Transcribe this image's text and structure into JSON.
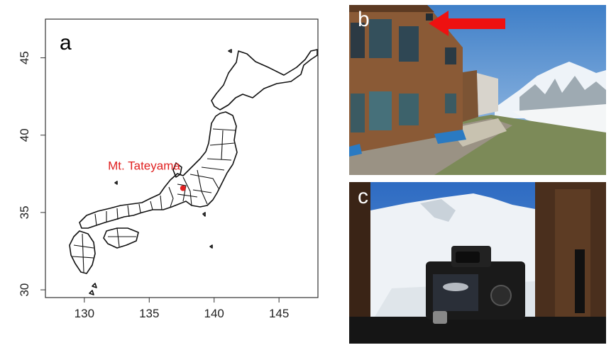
{
  "panels": {
    "a": "a",
    "b": "b",
    "c": "c"
  },
  "chart_data": {
    "type": "scatter",
    "title": "",
    "xlabel": "",
    "ylabel": "",
    "xlim": [
      127,
      148
    ],
    "ylim": [
      29.5,
      47.5
    ],
    "xticks": [
      130,
      135,
      140,
      145
    ],
    "yticks": [
      30,
      35,
      40,
      45
    ],
    "grid": false,
    "points": [
      {
        "label": "Mt. Tateyama",
        "x": 137.6,
        "y": 36.57,
        "color": "#e02020"
      }
    ]
  },
  "colors": {
    "marker": "#e02020",
    "arrow": "#ee1111",
    "map_line": "#111111"
  },
  "icons": {
    "arrow": "red-arrow-icon",
    "camera": "camera-icon"
  }
}
